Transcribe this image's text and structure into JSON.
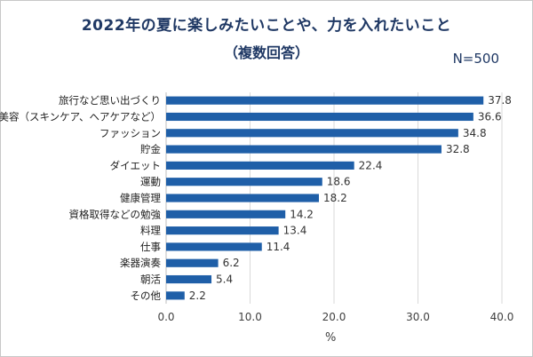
{
  "chart_data": {
    "type": "bar",
    "orientation": "horizontal",
    "title": "2022年の夏に楽しみたいことや、力を入れたいこと",
    "subtitle": "（複数回答）",
    "note": "N=500",
    "xlabel": "%",
    "ylabel": "",
    "xlim": [
      0,
      40
    ],
    "xticks": [
      "0.0",
      "10.0",
      "20.0",
      "30.0",
      "40.0"
    ],
    "grid": true,
    "bar_color": "#1f5fa8",
    "categories": [
      "旅行など思い出づくり",
      "美容（スキンケア、ヘアケアなど）",
      "ファッション",
      "貯金",
      "ダイエット",
      "運動",
      "健康管理",
      "資格取得などの勉強",
      "料理",
      "仕事",
      "楽器演奏",
      "朝活",
      "その他"
    ],
    "values": [
      37.8,
      36.6,
      34.8,
      32.8,
      22.4,
      18.6,
      18.2,
      14.2,
      13.4,
      11.4,
      6.2,
      5.4,
      2.2
    ],
    "value_labels": [
      "37.8",
      "36.6",
      "34.8",
      "32.8",
      "22.4",
      "18.6",
      "18.2",
      "14.2",
      "13.4",
      "11.4",
      "6.2",
      "5.4",
      "2.2"
    ]
  }
}
